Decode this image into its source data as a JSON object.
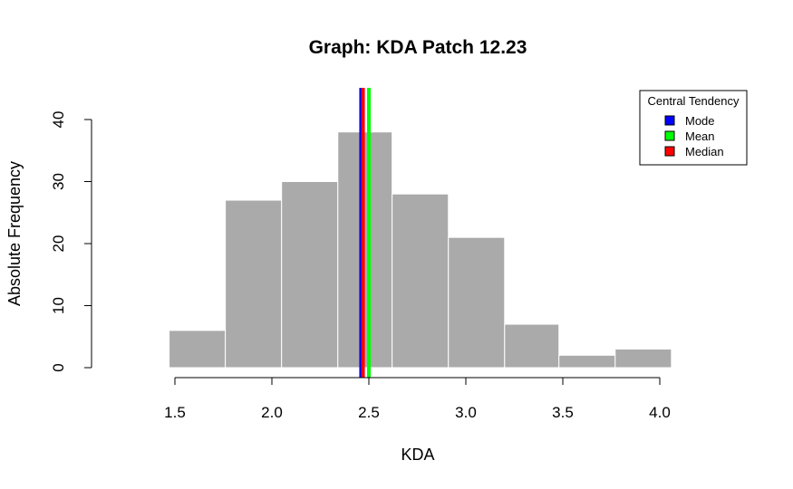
{
  "chart_data": {
    "type": "histogram",
    "title": "Graph: KDA Patch 12.23",
    "xlabel": "KDA",
    "ylabel": "Absolute Frequency",
    "xlim": [
      1.5,
      4.0
    ],
    "ylim": [
      0,
      40
    ],
    "x_ticks": [
      "1.5",
      "2.0",
      "2.5",
      "3.0",
      "3.5",
      "4.0"
    ],
    "y_ticks": [
      "0",
      "10",
      "20",
      "30",
      "40"
    ],
    "bin_edges": [
      1.47,
      1.76,
      2.05,
      2.34,
      2.62,
      2.91,
      3.2,
      3.48,
      3.77,
      4.06
    ],
    "counts": [
      6,
      27,
      30,
      38,
      28,
      21,
      7,
      2,
      3
    ],
    "bar_color": "#aaaaaa",
    "bar_border_color": "#ffffff",
    "grid": false,
    "lines": [
      {
        "name": "Mode",
        "x": 2.46,
        "color": "#0000ff"
      },
      {
        "name": "Median",
        "x": 2.47,
        "color": "#ff0000"
      },
      {
        "name": "Mean",
        "x": 2.5,
        "color": "#00ff00"
      }
    ],
    "legend": {
      "title": "Central Tendency",
      "placement": "top-right",
      "entries": [
        {
          "label": "Mode",
          "color": "#0000ff"
        },
        {
          "label": "Mean",
          "color": "#00ff00"
        },
        {
          "label": "Median",
          "color": "#ff0000"
        }
      ]
    }
  }
}
